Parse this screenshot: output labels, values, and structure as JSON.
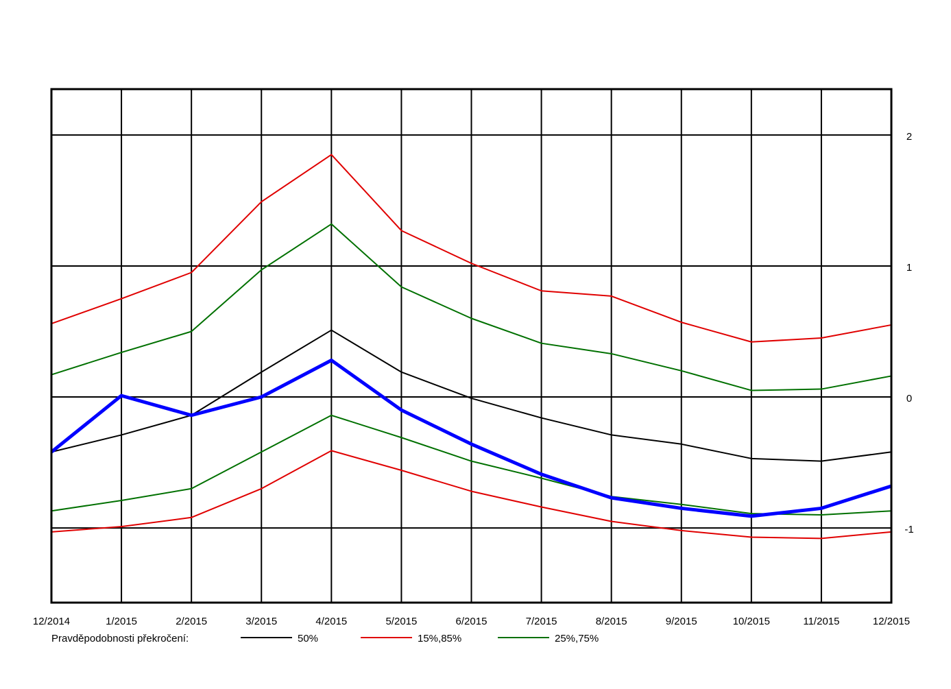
{
  "chart_data": {
    "type": "line",
    "title": "",
    "xlabel": "",
    "ylabel": "",
    "categories": [
      "12/2014",
      "1/2015",
      "2/2015",
      "3/2015",
      "4/2015",
      "5/2015",
      "6/2015",
      "7/2015",
      "8/2015",
      "9/2015",
      "10/2015",
      "11/2015",
      "12/2015"
    ],
    "ylim": [
      -1.57,
      2.35
    ],
    "yticks": [
      2,
      1,
      0,
      -1
    ],
    "ytick_labels": [
      "2",
      "1",
      "0",
      "-1"
    ],
    "y_axis_side": "right",
    "grid": true,
    "legend_title": "Pravděpodobnosti překročení:",
    "legend_placement": "bottom",
    "series": [
      {
        "id": "red_upper",
        "name": "15%,85%",
        "color": "#e00000",
        "width": 2,
        "legend": true,
        "values": [
          0.56,
          0.75,
          0.95,
          1.49,
          1.85,
          1.27,
          1.02,
          0.81,
          0.77,
          0.57,
          0.42,
          0.45,
          0.55
        ]
      },
      {
        "id": "red_lower",
        "name": "15%,85%",
        "color": "#e00000",
        "width": 2,
        "legend": false,
        "values": [
          -1.03,
          -0.99,
          -0.92,
          -0.7,
          -0.41,
          -0.56,
          -0.72,
          -0.84,
          -0.95,
          -1.02,
          -1.07,
          -1.08,
          -1.03
        ]
      },
      {
        "id": "green_upper",
        "name": "25%,75%",
        "color": "#007000",
        "width": 2,
        "legend": true,
        "values": [
          0.17,
          0.34,
          0.5,
          0.97,
          1.32,
          0.84,
          0.6,
          0.41,
          0.33,
          0.2,
          0.05,
          0.06,
          0.16
        ]
      },
      {
        "id": "green_lower",
        "name": "25%,75%",
        "color": "#007000",
        "width": 2,
        "legend": false,
        "values": [
          -0.87,
          -0.79,
          -0.7,
          -0.42,
          -0.14,
          -0.31,
          -0.49,
          -0.62,
          -0.76,
          -0.82,
          -0.89,
          -0.9,
          -0.87
        ]
      },
      {
        "id": "median",
        "name": "50%",
        "color": "#000000",
        "width": 2,
        "legend": true,
        "values": [
          -0.42,
          -0.29,
          -0.14,
          0.19,
          0.51,
          0.19,
          -0.01,
          -0.16,
          -0.29,
          -0.36,
          -0.47,
          -0.49,
          -0.42
        ]
      },
      {
        "id": "observed",
        "name": "",
        "color": "#0000ff",
        "width": 5,
        "legend": false,
        "values": [
          -0.42,
          0.01,
          -0.14,
          0.0,
          0.28,
          -0.1,
          -0.36,
          -0.59,
          -0.77,
          -0.85,
          -0.91,
          -0.85,
          -0.68
        ]
      }
    ],
    "legend_order": [
      "median",
      "red_upper",
      "green_upper"
    ]
  }
}
